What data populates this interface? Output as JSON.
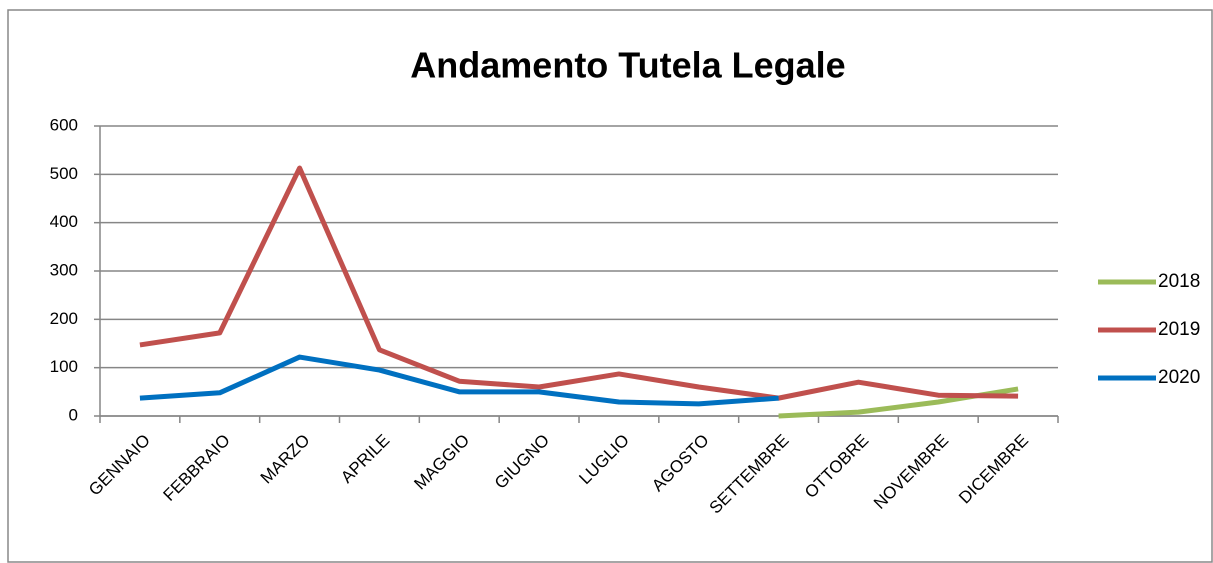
{
  "chart_data": {
    "type": "line",
    "title": "Andamento Tutela Legale",
    "categories": [
      "GENNAIO",
      "FEBBRAIO",
      "MARZO",
      "APRILE",
      "MAGGIO",
      "GIUGNO",
      "LUGLIO",
      "AGOSTO",
      "SETTEMBRE",
      "OTTOBRE",
      "NOVEMBRE",
      "DICEMBRE"
    ],
    "series": [
      {
        "name": "2018",
        "color": "#9bbb59",
        "values": [
          null,
          null,
          null,
          null,
          null,
          null,
          null,
          null,
          0,
          8,
          29,
          56
        ]
      },
      {
        "name": "2019",
        "color": "#c0504d",
        "values": [
          147,
          172,
          513,
          137,
          72,
          60,
          87,
          60,
          37,
          70,
          43,
          41
        ]
      },
      {
        "name": "2020",
        "color": "#0070c0",
        "values": [
          37,
          48,
          122,
          95,
          50,
          50,
          29,
          25,
          37,
          null,
          null,
          null
        ]
      }
    ],
    "ylim": [
      0,
      600
    ],
    "yticks": [
      0,
      100,
      200,
      300,
      400,
      500,
      600
    ],
    "grid": true,
    "legend": "right"
  }
}
